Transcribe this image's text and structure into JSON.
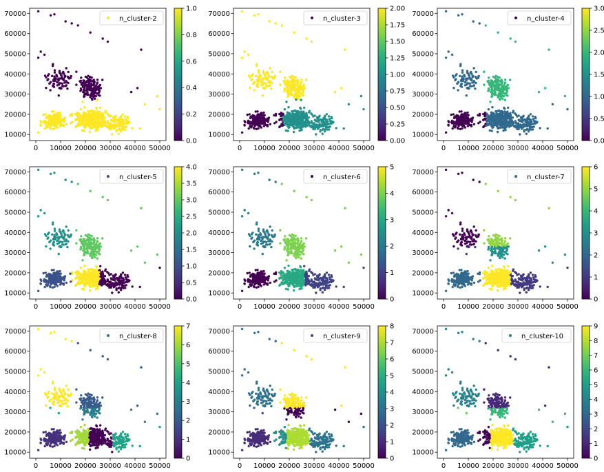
{
  "figure": {
    "colormap": "viridis",
    "colormap_stops": [
      "#440154",
      "#482878",
      "#3e4989",
      "#31688e",
      "#26828e",
      "#1f9e89",
      "#35b779",
      "#6ece58",
      "#b5de2b",
      "#fde725"
    ]
  },
  "chart_data": [
    {
      "type": "scatter",
      "legend": "n_cluster-2",
      "legend_color": "#fde725",
      "n_clusters": 2,
      "x_ticks": [
        "0",
        "10000",
        "20000",
        "30000",
        "40000",
        "50000"
      ],
      "xlim": [
        -2500,
        52500
      ],
      "y_ticks": [
        "10000",
        "20000",
        "30000",
        "40000",
        "50000",
        "60000",
        "70000"
      ],
      "ylim": [
        7000,
        72500
      ],
      "colorbar": {
        "min": 0,
        "max": 1,
        "ticks": [
          "0.0",
          "0.2",
          "0.4",
          "0.6",
          "0.8",
          "1.0"
        ]
      }
    },
    {
      "type": "scatter",
      "legend": "n_cluster-3",
      "legend_color": "#440154",
      "n_clusters": 3,
      "x_ticks": [
        "0",
        "10000",
        "20000",
        "30000",
        "40000",
        "50000"
      ],
      "xlim": [
        -2500,
        52500
      ],
      "y_ticks": [
        "10000",
        "20000",
        "30000",
        "40000",
        "50000",
        "60000",
        "70000"
      ],
      "ylim": [
        7000,
        72500
      ],
      "colorbar": {
        "min": 0,
        "max": 2,
        "ticks": [
          "0.00",
          "0.25",
          "0.50",
          "0.75",
          "1.00",
          "1.25",
          "1.50",
          "1.75",
          "2.00"
        ]
      }
    },
    {
      "type": "scatter",
      "legend": "n_cluster-4",
      "legend_color": "#440154",
      "n_clusters": 4,
      "x_ticks": [
        "0",
        "10000",
        "20000",
        "30000",
        "40000",
        "50000"
      ],
      "xlim": [
        -2500,
        52500
      ],
      "y_ticks": [
        "10000",
        "20000",
        "30000",
        "40000",
        "50000",
        "60000",
        "70000"
      ],
      "ylim": [
        7000,
        72500
      ],
      "colorbar": {
        "min": 0,
        "max": 3,
        "ticks": [
          "0.0",
          "0.5",
          "1.0",
          "1.5",
          "2.0",
          "2.5",
          "3.0"
        ]
      }
    },
    {
      "type": "scatter",
      "legend": "n_cluster-5",
      "legend_color": "#3e4989",
      "n_clusters": 5,
      "x_ticks": [
        "0",
        "10000",
        "20000",
        "30000",
        "40000",
        "50000"
      ],
      "xlim": [
        -2500,
        52500
      ],
      "y_ticks": [
        "10000",
        "20000",
        "30000",
        "40000",
        "50000",
        "60000",
        "70000"
      ],
      "ylim": [
        7000,
        72500
      ],
      "colorbar": {
        "min": 0,
        "max": 4,
        "ticks": [
          "0.0",
          "0.5",
          "1.0",
          "1.5",
          "2.0",
          "2.5",
          "3.0",
          "3.5",
          "4.0"
        ]
      }
    },
    {
      "type": "scatter",
      "legend": "n_cluster-6",
      "legend_color": "#440154",
      "n_clusters": 6,
      "x_ticks": [
        "0",
        "10000",
        "20000",
        "30000",
        "40000",
        "50000"
      ],
      "xlim": [
        -2500,
        52500
      ],
      "y_ticks": [
        "10000",
        "20000",
        "30000",
        "40000",
        "50000",
        "60000",
        "70000"
      ],
      "ylim": [
        7000,
        72500
      ],
      "colorbar": {
        "min": 0,
        "max": 5,
        "ticks": [
          "0",
          "1",
          "2",
          "3",
          "4",
          "5"
        ]
      }
    },
    {
      "type": "scatter",
      "legend": "n_cluster-7",
      "legend_color": "#2a788e",
      "n_clusters": 7,
      "x_ticks": [
        "0",
        "10000",
        "20000",
        "30000",
        "40000",
        "50000"
      ],
      "xlim": [
        -2500,
        52500
      ],
      "y_ticks": [
        "10000",
        "20000",
        "30000",
        "40000",
        "50000",
        "60000",
        "70000"
      ],
      "ylim": [
        7000,
        72500
      ],
      "colorbar": {
        "min": 0,
        "max": 6,
        "ticks": [
          "0",
          "1",
          "2",
          "3",
          "4",
          "5",
          "6"
        ]
      }
    },
    {
      "type": "scatter",
      "legend": "n_cluster-8",
      "legend_color": "#2a788e",
      "n_clusters": 8,
      "x_ticks": [
        "0",
        "10000",
        "20000",
        "30000",
        "40000",
        "50000"
      ],
      "xlim": [
        -2500,
        52500
      ],
      "y_ticks": [
        "10000",
        "20000",
        "30000",
        "40000",
        "50000",
        "60000",
        "70000"
      ],
      "ylim": [
        7000,
        72500
      ],
      "colorbar": {
        "min": 0,
        "max": 7,
        "ticks": [
          "0",
          "1",
          "2",
          "3",
          "4",
          "5",
          "6",
          "7"
        ]
      }
    },
    {
      "type": "scatter",
      "legend": "n_cluster-9",
      "legend_color": "#3e4989",
      "n_clusters": 9,
      "x_ticks": [
        "0",
        "10000",
        "20000",
        "30000",
        "40000",
        "50000"
      ],
      "xlim": [
        -2500,
        52500
      ],
      "y_ticks": [
        "10000",
        "20000",
        "30000",
        "40000",
        "50000",
        "60000",
        "70000"
      ],
      "ylim": [
        7000,
        72500
      ],
      "colorbar": {
        "min": 0,
        "max": 8,
        "ticks": [
          "0",
          "1",
          "2",
          "3",
          "4",
          "5",
          "6",
          "7",
          "8"
        ]
      }
    },
    {
      "type": "scatter",
      "legend": "n_cluster-10",
      "legend_color": "#26828e",
      "n_clusters": 10,
      "x_ticks": [
        "0",
        "10000",
        "20000",
        "30000",
        "40000",
        "50000"
      ],
      "xlim": [
        -2500,
        52500
      ],
      "y_ticks": [
        "10000",
        "20000",
        "30000",
        "40000",
        "50000",
        "60000",
        "70000"
      ],
      "ylim": [
        7000,
        72500
      ],
      "colorbar": {
        "min": 0,
        "max": 9,
        "ticks": [
          "0",
          "1",
          "2",
          "3",
          "4",
          "5",
          "6",
          "7",
          "8",
          "9"
        ]
      }
    }
  ]
}
